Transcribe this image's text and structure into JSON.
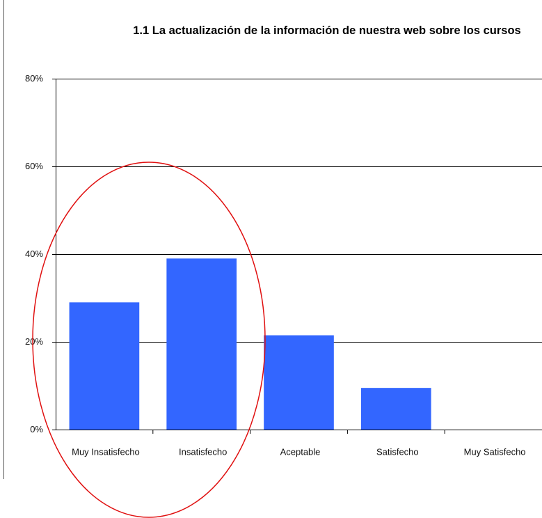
{
  "chart_data": {
    "type": "bar",
    "title": "1.1 La actualización de la información de nuestra web sobre los cursos",
    "categories": [
      "Muy Insatisfecho",
      "Insatisfecho",
      "Aceptable",
      "Satisfecho",
      "Muy Satisfecho"
    ],
    "values": [
      29,
      39,
      21.5,
      9.5,
      0
    ],
    "color": "#3366ff",
    "ylim": [
      0,
      80
    ],
    "yticks": [
      {
        "value": 0,
        "label": "0%"
      },
      {
        "value": 20,
        "label": "20%"
      },
      {
        "value": 40,
        "label": "40%"
      },
      {
        "value": 60,
        "label": "60%"
      },
      {
        "value": 80,
        "label": "80%"
      }
    ],
    "grid": true
  }
}
